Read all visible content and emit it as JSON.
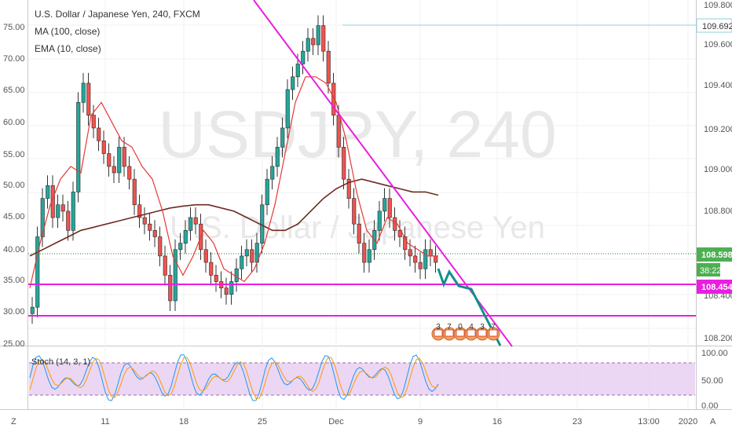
{
  "header": {
    "symbol_title": "U.S. Dollar / Japanese Yen, 240, FXCM",
    "indicator_1": "MA (100, close)",
    "indicator_2": "EMA (10, close)",
    "stoch_label": "Stoch (14, 3, 1)"
  },
  "watermark": {
    "symbol": "USDJPY, 240",
    "name": "U.S. Dollar / Japanese Yen"
  },
  "colors": {
    "candle_up": "#26a69a",
    "candle_down": "#ef5350",
    "ema": "#e53935",
    "ma": "#6d2b21",
    "trend_magenta": "#e91ee0",
    "projection": "#138f8a",
    "price_badge": "#4caf50",
    "support_badge": "#e91ee0",
    "stoch_band": "#e1bee7"
  },
  "price_axis": {
    "labels": [
      "109.800",
      "109.600",
      "109.400",
      "109.200",
      "109.000",
      "108.800",
      "108.600",
      "108.400",
      "108.200"
    ]
  },
  "left_axis": {
    "labels": [
      "75.00",
      "70.00",
      "65.00",
      "60.00",
      "55.00",
      "50.00",
      "45.00",
      "40.00",
      "35.00",
      "30.00",
      "25.00"
    ]
  },
  "badges": {
    "resistance": "109.692",
    "last_price": "108.598",
    "countdown": "38:22",
    "support": "108.454"
  },
  "stoch_axis": {
    "labels": [
      "100.00",
      "50.00",
      "0.00"
    ]
  },
  "time_axis": {
    "labels": [
      "11",
      "18",
      "25",
      "Dec",
      "9",
      "16",
      "23",
      "13:00",
      "2020"
    ]
  },
  "event_markers": [
    "3",
    "7",
    "0",
    "4",
    "3",
    "7"
  ],
  "corner_buttons": {
    "left": "Z",
    "right": "A"
  },
  "chart_data": {
    "type": "candlestick",
    "title": "U.S. Dollar / Japanese Yen, 240, FXCM",
    "x_ticks": [
      "11",
      "18",
      "25",
      "Dec",
      "9",
      "16",
      "23",
      "13:00",
      "2020"
    ],
    "y_right_range": [
      108.1,
      109.85
    ],
    "y_left_range": [
      24,
      78
    ],
    "horizontal_levels": {
      "resistance": 109.692,
      "support": 108.454,
      "lower_support": 108.297,
      "last_price": 108.598
    },
    "stoch_levels": [
      80,
      20
    ],
    "series": [
      {
        "name": "MA (100, close)",
        "type": "line",
        "values": [
          38,
          39,
          40,
          41,
          42,
          42.5,
          43,
          43.5,
          44,
          44.5,
          45,
          45.5,
          45.8,
          46,
          46,
          45.5,
          45,
          44,
          43,
          42,
          42,
          43,
          45,
          47,
          48.5,
          49.5,
          50,
          49.5,
          49,
          48.5,
          48,
          48,
          47.5
        ]
      },
      {
        "name": "EMA (10, close)",
        "type": "line",
        "values": [
          33,
          40,
          46,
          50,
          52,
          51,
          60,
          62,
          59,
          56,
          55,
          52,
          50,
          45,
          38,
          35,
          38,
          42,
          40,
          36,
          35,
          34,
          36,
          40,
          46,
          54,
          62,
          66,
          66,
          65,
          62,
          56,
          48,
          42,
          40,
          44,
          43,
          40,
          39,
          38,
          38
        ]
      }
    ],
    "candle_closes_left_scale": [
      30,
      41,
      47,
      49,
      44,
      46,
      45,
      42,
      48,
      62,
      65,
      60,
      58,
      56,
      54,
      52,
      51,
      55,
      52,
      50,
      46,
      44,
      43,
      42,
      41,
      38,
      35,
      31,
      39,
      40,
      42,
      44,
      43,
      39,
      37,
      35,
      34,
      33,
      32,
      34,
      36,
      38,
      39,
      37,
      40,
      46,
      50,
      52,
      55,
      58,
      64,
      66,
      68,
      70,
      72,
      71,
      74,
      70,
      65,
      60,
      55,
      50,
      47,
      43,
      40,
      37,
      39,
      42,
      45,
      47,
      44,
      42,
      41,
      39,
      38,
      37,
      36,
      39,
      38,
      37
    ]
  }
}
